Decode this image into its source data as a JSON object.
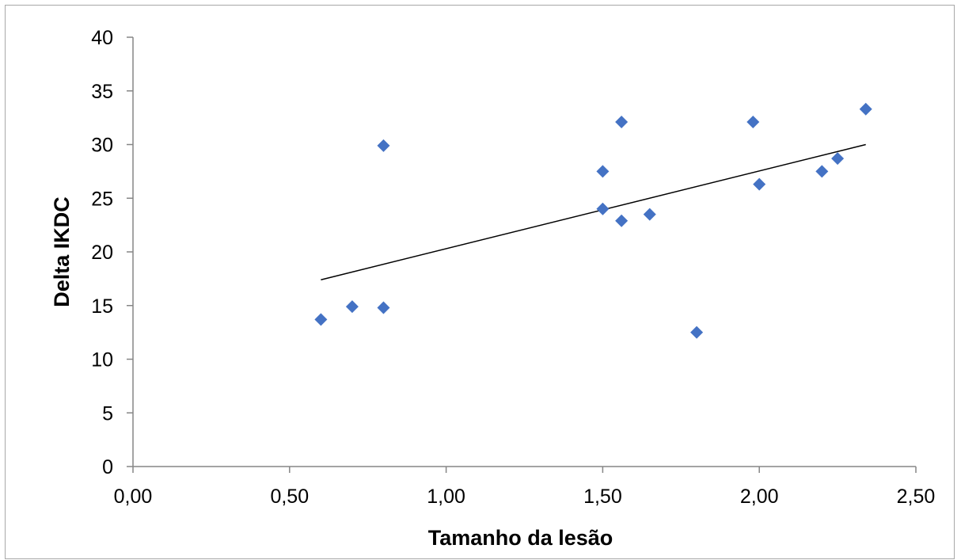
{
  "chart_data": {
    "type": "scatter",
    "title": "",
    "xlabel": "Tamanho da lesão",
    "ylabel": "Delta IKDC",
    "xlim": [
      0,
      2.5
    ],
    "ylim": [
      0,
      40
    ],
    "x_ticks": [
      0,
      0.5,
      1.0,
      1.5,
      2.0,
      2.5
    ],
    "x_tick_labels": [
      "0,00",
      "0,50",
      "1,00",
      "1,50",
      "2,00",
      "2,50"
    ],
    "y_ticks": [
      0,
      5,
      10,
      15,
      20,
      25,
      30,
      35,
      40
    ],
    "y_tick_labels": [
      "0",
      "5",
      "10",
      "15",
      "20",
      "25",
      "30",
      "35",
      "40"
    ],
    "grid": false,
    "legend": "none",
    "marker": "diamond",
    "marker_color": "#4472c4",
    "trendline_color": "#000000",
    "points": [
      {
        "x": 0.6,
        "y": 13.7
      },
      {
        "x": 0.7,
        "y": 14.9
      },
      {
        "x": 0.8,
        "y": 14.8
      },
      {
        "x": 0.8,
        "y": 29.9
      },
      {
        "x": 1.5,
        "y": 27.5
      },
      {
        "x": 1.5,
        "y": 24.0
      },
      {
        "x": 1.56,
        "y": 32.1
      },
      {
        "x": 1.56,
        "y": 22.9
      },
      {
        "x": 1.65,
        "y": 23.5
      },
      {
        "x": 1.8,
        "y": 12.5
      },
      {
        "x": 1.98,
        "y": 32.1
      },
      {
        "x": 2.0,
        "y": 26.3
      },
      {
        "x": 2.2,
        "y": 27.5
      },
      {
        "x": 2.25,
        "y": 28.7
      },
      {
        "x": 2.34,
        "y": 33.3
      }
    ],
    "trendline": {
      "type": "linear",
      "start": {
        "x": 0.6,
        "y": 17.4
      },
      "end": {
        "x": 2.34,
        "y": 30.0
      }
    }
  }
}
